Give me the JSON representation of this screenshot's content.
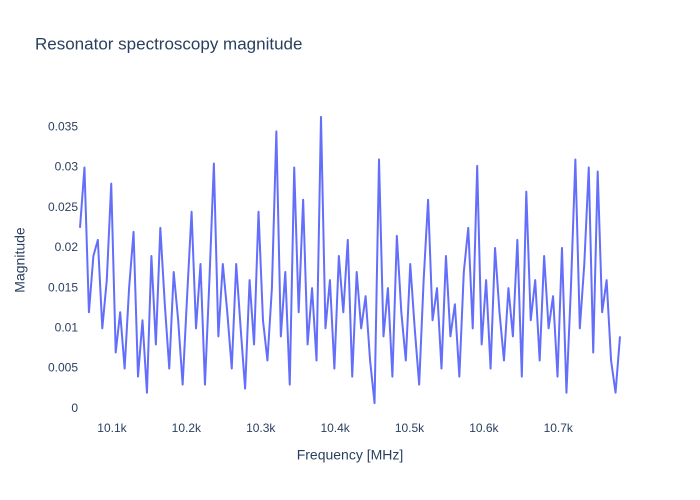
{
  "chart_data": {
    "type": "line",
    "title": "Resonator spectroscopy magnitude",
    "x_label": "Frequency [MHz]",
    "y_label": "Magnitude",
    "color": "#636efa",
    "grid": false,
    "x": [
      10057,
      10063,
      10069,
      10075,
      10081,
      10087,
      10093,
      10099,
      10105,
      10111,
      10117,
      10123,
      10129,
      10135,
      10141,
      10147,
      10153,
      10159,
      10165,
      10171,
      10177,
      10183,
      10189,
      10195,
      10201,
      10207,
      10213,
      10219,
      10225,
      10231,
      10237,
      10243,
      10249,
      10255,
      10261,
      10267,
      10273,
      10279,
      10285,
      10291,
      10297,
      10303,
      10309,
      10315,
      10321,
      10327,
      10333,
      10339,
      10345,
      10351,
      10357,
      10363,
      10369,
      10375,
      10381,
      10387,
      10393,
      10399,
      10405,
      10411,
      10417,
      10423,
      10429,
      10435,
      10441,
      10447,
      10453,
      10459,
      10465,
      10471,
      10477,
      10483,
      10489,
      10495,
      10501,
      10507,
      10513,
      10519,
      10525,
      10531,
      10537,
      10543,
      10549,
      10555,
      10561,
      10567,
      10573,
      10579,
      10585,
      10591,
      10597,
      10603,
      10609,
      10615,
      10621,
      10627,
      10633,
      10639,
      10645,
      10651,
      10657,
      10663,
      10669,
      10675,
      10681,
      10687,
      10693,
      10699,
      10705,
      10711,
      10717,
      10723,
      10729,
      10735,
      10741,
      10747,
      10753,
      10759,
      10765,
      10771,
      10777,
      10783
    ],
    "values": [
      0.0225,
      0.03,
      0.012,
      0.019,
      0.021,
      0.01,
      0.016,
      0.028,
      0.007,
      0.012,
      0.005,
      0.015,
      0.022,
      0.004,
      0.011,
      0.002,
      0.019,
      0.008,
      0.0225,
      0.013,
      0.005,
      0.017,
      0.011,
      0.003,
      0.014,
      0.0245,
      0.01,
      0.018,
      0.003,
      0.016,
      0.0305,
      0.009,
      0.018,
      0.012,
      0.005,
      0.018,
      0.01,
      0.0025,
      0.016,
      0.008,
      0.0245,
      0.011,
      0.006,
      0.015,
      0.0345,
      0.009,
      0.017,
      0.003,
      0.03,
      0.012,
      0.026,
      0.008,
      0.015,
      0.006,
      0.0363,
      0.01,
      0.016,
      0.005,
      0.019,
      0.012,
      0.021,
      0.004,
      0.017,
      0.01,
      0.014,
      0.006,
      0.0007,
      0.031,
      0.009,
      0.015,
      0.004,
      0.0215,
      0.012,
      0.006,
      0.018,
      0.01,
      0.003,
      0.016,
      0.026,
      0.011,
      0.015,
      0.005,
      0.019,
      0.009,
      0.013,
      0.004,
      0.017,
      0.0225,
      0.01,
      0.0302,
      0.008,
      0.016,
      0.005,
      0.02,
      0.012,
      0.006,
      0.015,
      0.009,
      0.021,
      0.004,
      0.027,
      0.011,
      0.016,
      0.006,
      0.019,
      0.01,
      0.014,
      0.004,
      0.02,
      0.002,
      0.015,
      0.031,
      0.01,
      0.018,
      0.03,
      0.007,
      0.0295,
      0.012,
      0.016,
      0.006,
      0.002,
      0.009
    ],
    "xlim": [
      10057,
      10783
    ],
    "xticks": [
      {
        "value": 10100,
        "label": "10.1k"
      },
      {
        "value": 10200,
        "label": "10.2k"
      },
      {
        "value": 10300,
        "label": "10.3k"
      },
      {
        "value": 10400,
        "label": "10.4k"
      },
      {
        "value": 10500,
        "label": "10.5k"
      },
      {
        "value": 10600,
        "label": "10.6k"
      },
      {
        "value": 10700,
        "label": "10.7k"
      }
    ],
    "ylim": [
      -0.0014,
      0.0384
    ],
    "yticks": [
      0,
      0.005,
      0.01,
      0.015,
      0.02,
      0.025,
      0.03,
      0.035
    ]
  }
}
